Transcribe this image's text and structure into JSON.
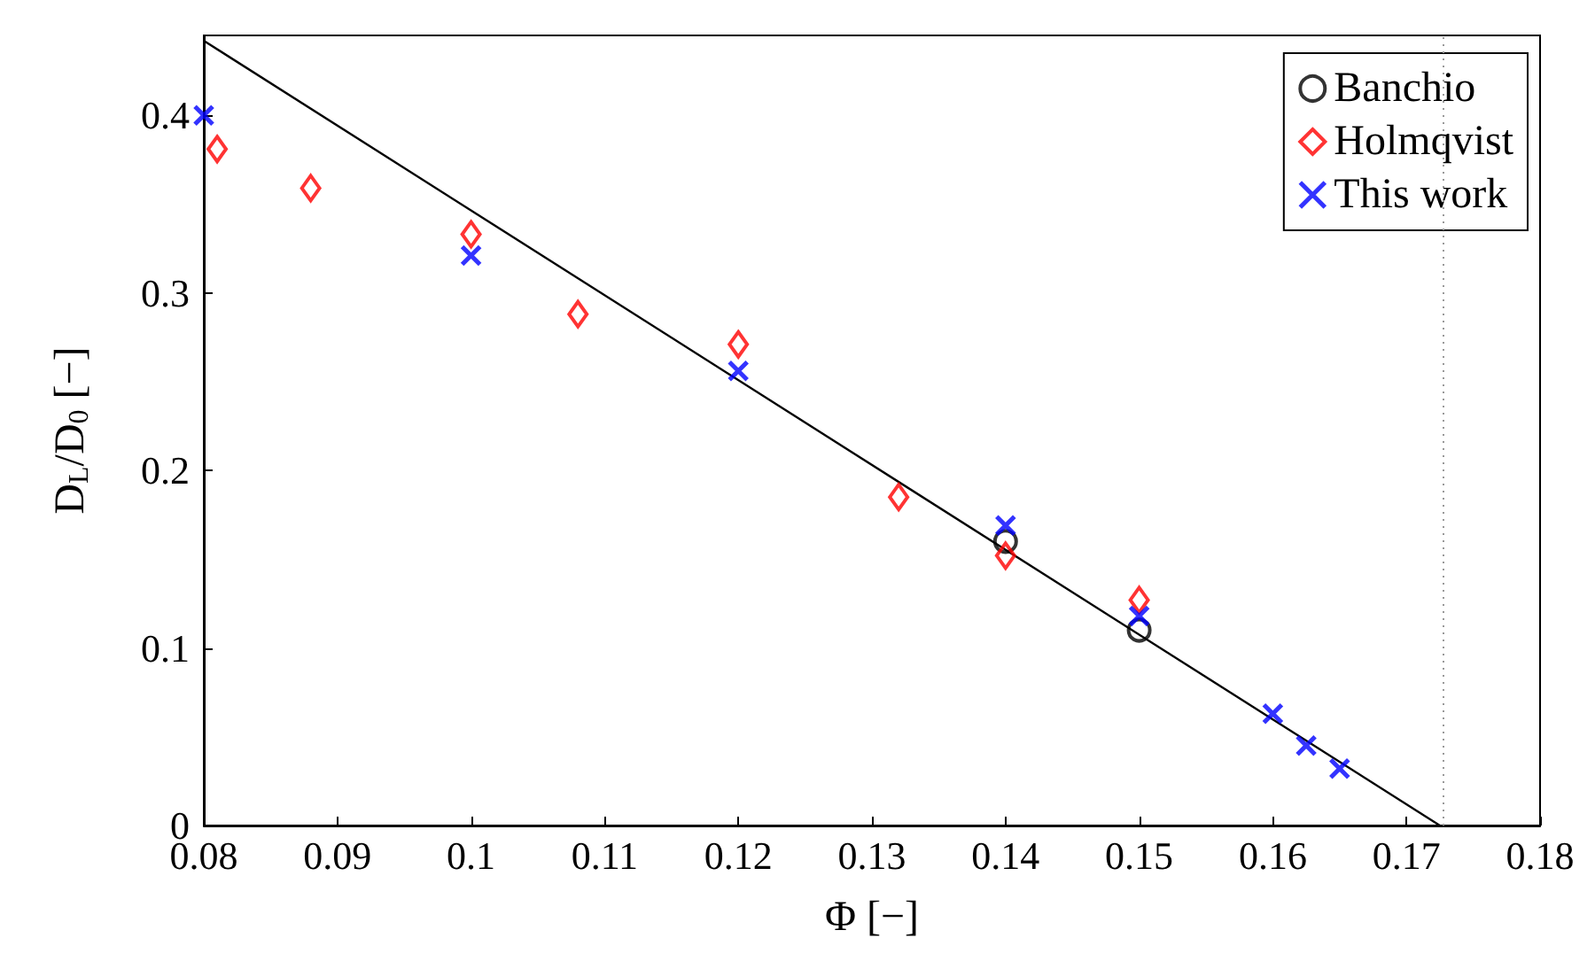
{
  "chart_data": {
    "type": "scatter",
    "xlabel": "Φ [−]",
    "ylabel": "D$_{L}$/D$_{0}$ [−]",
    "xlim": [
      0.08,
      0.18
    ],
    "xticks": [
      0.08,
      0.09,
      0.1,
      0.11,
      0.12,
      0.13,
      0.14,
      0.15,
      0.16,
      0.17,
      0.18
    ],
    "ylim": [
      0,
      0.445
    ],
    "yticks": [
      0,
      0.1,
      0.2,
      0.3,
      0.4
    ],
    "grid": false,
    "legend": "top right",
    "series": [
      {
        "name": "Banchio",
        "color": "#000000",
        "marker": "circle",
        "x": [
          0.14,
          0.15
        ],
        "values": [
          0.16,
          0.11
        ]
      },
      {
        "name": "Holmqvist",
        "color": "#ff0000",
        "marker": "diamond",
        "x": [
          0.081,
          0.088,
          0.1,
          0.108,
          0.12,
          0.132,
          0.14,
          0.15
        ],
        "values": [
          0.381,
          0.359,
          0.333,
          0.288,
          0.271,
          0.185,
          0.152,
          0.127
        ]
      },
      {
        "name": "This work",
        "color": "#0000ff",
        "marker": "cross",
        "x": [
          0.08,
          0.1,
          0.12,
          0.14,
          0.15,
          0.16,
          0.1625,
          0.165
        ],
        "values": [
          0.4,
          0.321,
          0.256,
          0.169,
          0.118,
          0.063,
          0.045,
          0.032
        ]
      },
      {
        "type": "line",
        "color": "#000000",
        "marker": "none",
        "x": [
          0.08,
          0.1725
        ],
        "values": [
          0.442,
          0
        ]
      }
    ],
    "ref_lines": [
      {
        "axis": "x",
        "value": 0.1728,
        "color": "#999999",
        "line_style": "dotted"
      }
    ]
  }
}
